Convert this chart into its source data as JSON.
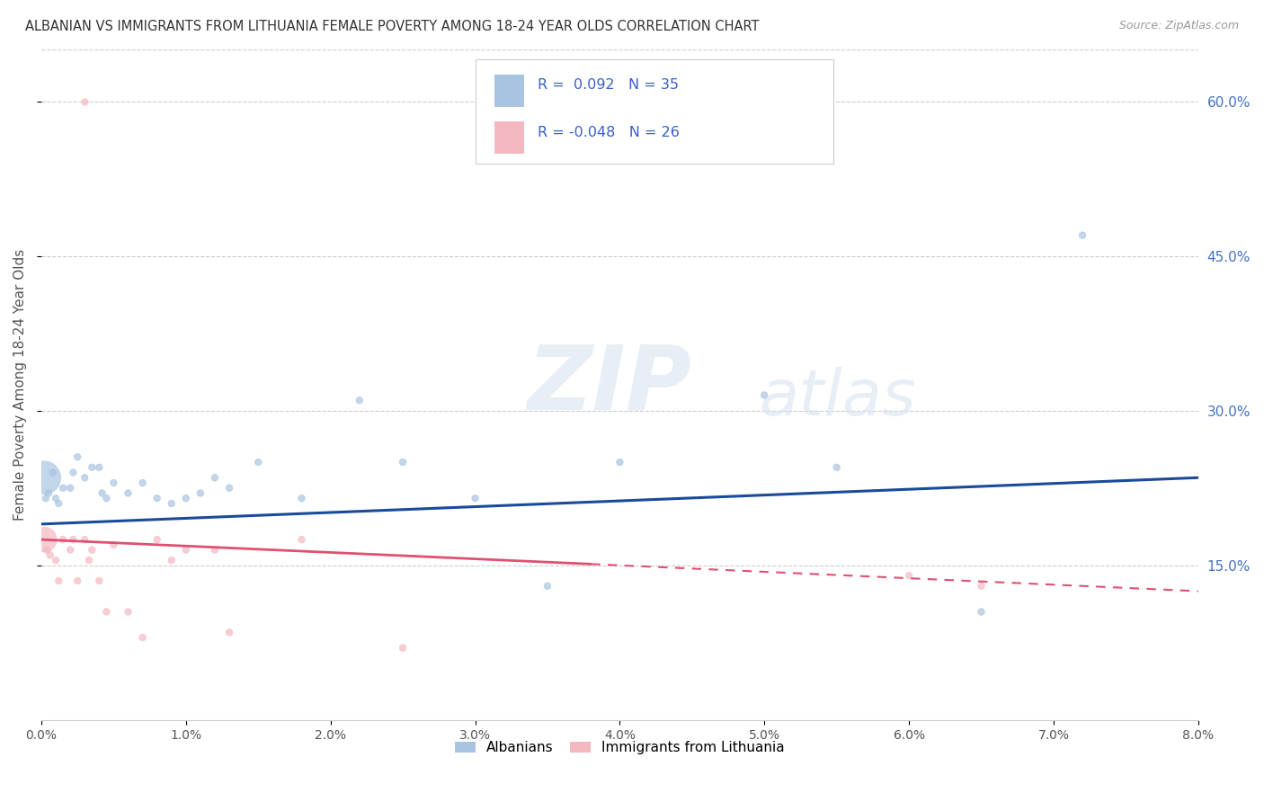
{
  "title": "ALBANIAN VS IMMIGRANTS FROM LITHUANIA FEMALE POVERTY AMONG 18-24 YEAR OLDS CORRELATION CHART",
  "source": "Source: ZipAtlas.com",
  "ylabel": "Female Poverty Among 18-24 Year Olds",
  "xmin": 0.0,
  "xmax": 0.08,
  "ymin": 0.0,
  "ymax": 0.65,
  "yticks": [
    0.15,
    0.3,
    0.45,
    0.6
  ],
  "ytick_labels": [
    "15.0%",
    "30.0%",
    "45.0%",
    "60.0%"
  ],
  "R_albanian": 0.092,
  "N_albanian": 35,
  "R_lithuania": -0.048,
  "N_lithuania": 26,
  "albanian_color": "#a8c4e0",
  "lithuania_color": "#f4b8c1",
  "albanian_line_color": "#1a4a9b",
  "lithuania_line_color": "#e05070",
  "watermark_zip": "ZIP",
  "watermark_atlas": "atlas",
  "albanian_x": [
    0.0002,
    0.0003,
    0.0005,
    0.0008,
    0.001,
    0.0012,
    0.0015,
    0.002,
    0.0022,
    0.0025,
    0.003,
    0.0035,
    0.004,
    0.0042,
    0.0045,
    0.005,
    0.006,
    0.007,
    0.008,
    0.009,
    0.01,
    0.011,
    0.012,
    0.013,
    0.015,
    0.018,
    0.022,
    0.025,
    0.03,
    0.035,
    0.04,
    0.05,
    0.055,
    0.065,
    0.072
  ],
  "albanian_y": [
    0.235,
    0.215,
    0.22,
    0.24,
    0.215,
    0.21,
    0.225,
    0.225,
    0.24,
    0.255,
    0.235,
    0.245,
    0.245,
    0.22,
    0.215,
    0.23,
    0.22,
    0.23,
    0.215,
    0.21,
    0.215,
    0.22,
    0.235,
    0.225,
    0.25,
    0.215,
    0.31,
    0.25,
    0.215,
    0.13,
    0.25,
    0.315,
    0.245,
    0.105,
    0.47
  ],
  "albanian_sizes": [
    700,
    30,
    30,
    30,
    30,
    30,
    30,
    30,
    30,
    30,
    30,
    30,
    30,
    30,
    30,
    30,
    30,
    30,
    30,
    30,
    30,
    30,
    30,
    30,
    30,
    30,
    30,
    30,
    30,
    30,
    30,
    30,
    30,
    30,
    30
  ],
  "lithuania_x": [
    0.0002,
    0.0004,
    0.0006,
    0.001,
    0.0012,
    0.0015,
    0.002,
    0.0022,
    0.0025,
    0.003,
    0.0033,
    0.0035,
    0.004,
    0.0045,
    0.005,
    0.006,
    0.007,
    0.008,
    0.009,
    0.01,
    0.012,
    0.013,
    0.018,
    0.025,
    0.06,
    0.065
  ],
  "lithuania_y": [
    0.175,
    0.165,
    0.16,
    0.155,
    0.135,
    0.175,
    0.165,
    0.175,
    0.135,
    0.175,
    0.155,
    0.165,
    0.135,
    0.105,
    0.17,
    0.105,
    0.08,
    0.175,
    0.155,
    0.165,
    0.165,
    0.085,
    0.175,
    0.07,
    0.14,
    0.13
  ],
  "lithuania_sizes": [
    400,
    30,
    30,
    30,
    30,
    30,
    30,
    30,
    30,
    30,
    30,
    30,
    30,
    30,
    30,
    30,
    30,
    30,
    30,
    30,
    30,
    30,
    30,
    30,
    30,
    30
  ],
  "pink_outlier_x": [
    0.003
  ],
  "pink_outlier_y": [
    0.6
  ],
  "pink_outlier_size": [
    30
  ],
  "blue_line_x0": 0.0,
  "blue_line_x1": 0.08,
  "blue_line_y0": 0.19,
  "blue_line_y1": 0.235,
  "pink_line_x0": 0.0,
  "pink_line_x1": 0.08,
  "pink_line_y0": 0.175,
  "pink_line_y1": 0.125
}
